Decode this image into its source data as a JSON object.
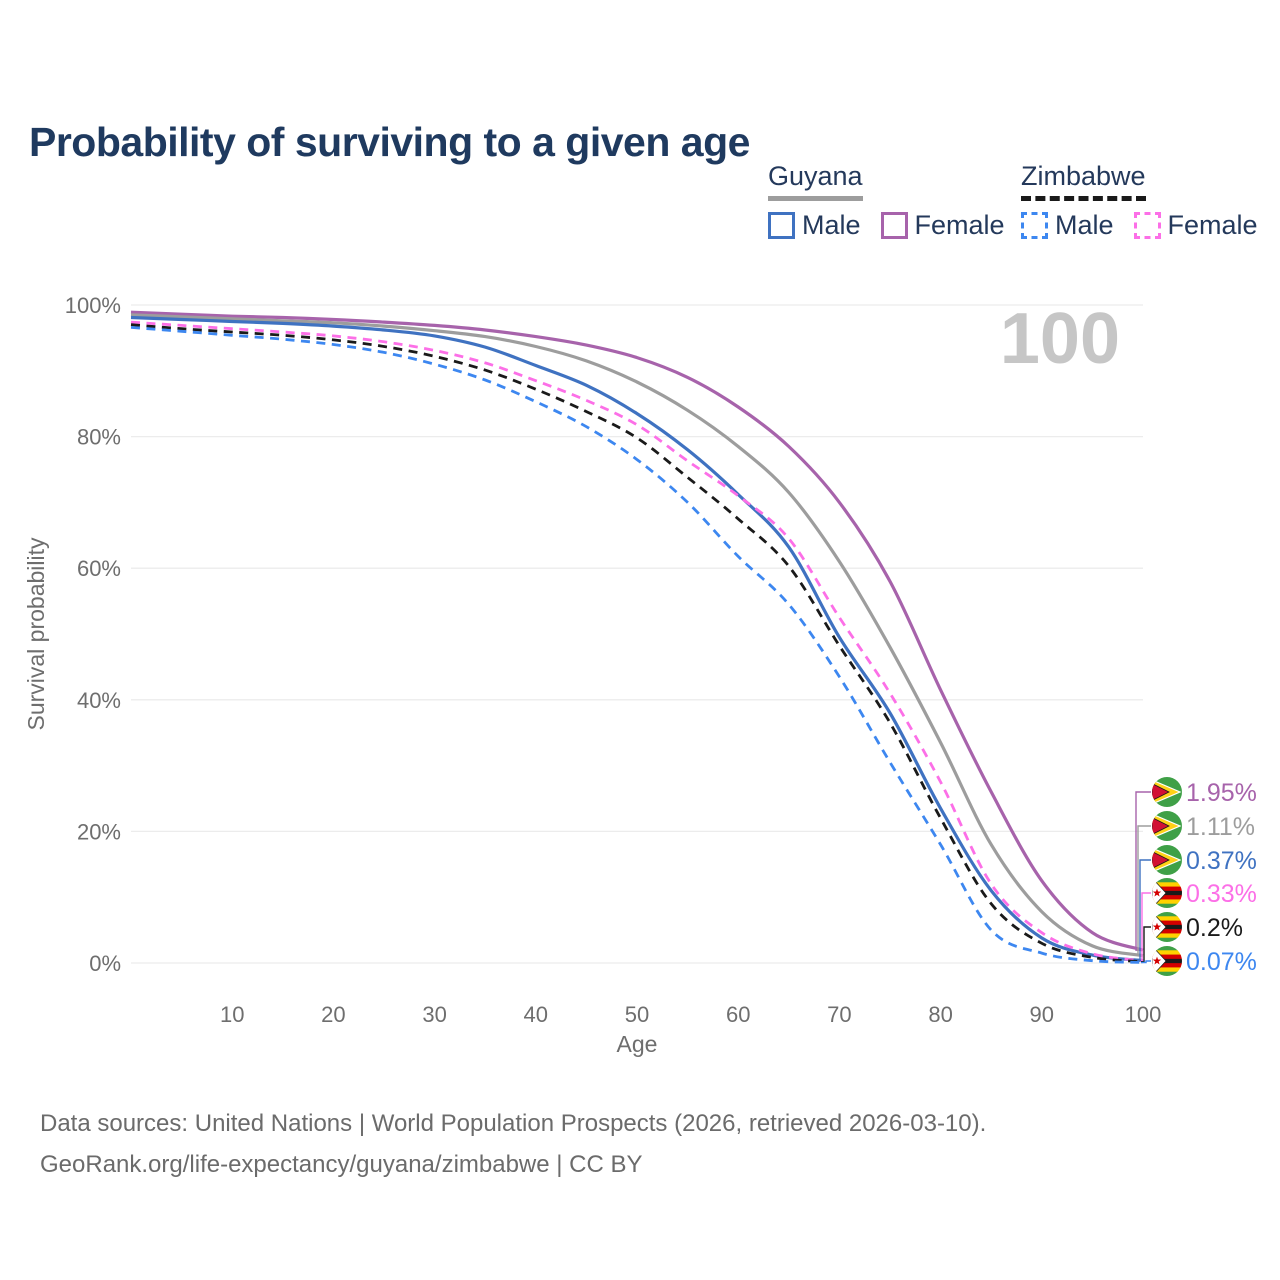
{
  "title": "Probability of surviving to a given age",
  "legend": {
    "groups": [
      {
        "name": "Guyana",
        "line_color": "#9d9d9d",
        "line_style": "solid",
        "items": [
          {
            "label": "Male",
            "color": "#3f72c1",
            "style": "solid"
          },
          {
            "label": "Female",
            "color": "#a763ab",
            "style": "solid"
          }
        ]
      },
      {
        "name": "Zimbabwe",
        "line_color": "#1a1a1a",
        "line_style": "dashed",
        "items": [
          {
            "label": "Male",
            "color": "#3d87f0",
            "style": "dashed"
          },
          {
            "label": "Female",
            "color": "#fc6fe7",
            "style": "dashed"
          }
        ]
      }
    ]
  },
  "chart_data": {
    "type": "line",
    "title": "Probability of surviving to a given age",
    "xlabel": "Age",
    "ylabel": "Survival probability",
    "xlim": [
      0,
      100
    ],
    "ylim": [
      0,
      100
    ],
    "grid": "horizontal",
    "legend_position": "top-right",
    "watermark": "100",
    "x_ticks": [
      10,
      20,
      30,
      40,
      50,
      60,
      70,
      80,
      90,
      100
    ],
    "y_tick_values": [
      0,
      20,
      40,
      60,
      80,
      100
    ],
    "y_tick_labels": [
      "0%",
      "20%",
      "40%",
      "60%",
      "80%",
      "100%"
    ],
    "ages": [
      0,
      5,
      10,
      15,
      20,
      25,
      30,
      35,
      40,
      45,
      50,
      55,
      60,
      65,
      70,
      75,
      80,
      85,
      90,
      95,
      100
    ],
    "series": [
      {
        "name": "Guyana Female",
        "country": "guyana",
        "sex": "female",
        "color": "#a763ab",
        "dash": false,
        "end_label": "1.95%",
        "values": [
          98.9,
          98.6,
          98.3,
          98.1,
          97.8,
          97.4,
          96.9,
          96.2,
          95.2,
          93.9,
          92.0,
          89.0,
          84.5,
          78.5,
          70.0,
          58.0,
          41.5,
          26.0,
          12.5,
          4.6,
          1.95
        ]
      },
      {
        "name": "Guyana",
        "country": "guyana",
        "sex": "both",
        "color": "#9d9d9d",
        "dash": false,
        "end_label": "1.11%",
        "values": [
          98.5,
          98.2,
          97.9,
          97.6,
          97.3,
          96.8,
          96.1,
          95.2,
          93.7,
          91.5,
          88.3,
          84.0,
          78.5,
          71.5,
          61.0,
          48.0,
          33.5,
          18.0,
          7.8,
          2.6,
          1.11
        ]
      },
      {
        "name": "Guyana Male",
        "country": "guyana",
        "sex": "male",
        "color": "#3f72c1",
        "dash": false,
        "end_label": "0.37%",
        "values": [
          98.1,
          97.8,
          97.5,
          97.2,
          96.8,
          96.2,
          95.3,
          93.6,
          90.8,
          87.8,
          83.5,
          78.0,
          71.2,
          63.2,
          49.5,
          38.0,
          23.5,
          11.0,
          3.8,
          1.2,
          0.37
        ]
      },
      {
        "name": "Zimbabwe Female",
        "country": "zimbabwe",
        "sex": "female",
        "color": "#fc6fe7",
        "dash": true,
        "end_label": "0.33%",
        "values": [
          97.4,
          96.9,
          96.4,
          95.9,
          95.3,
          94.4,
          93.1,
          91.2,
          88.5,
          85.5,
          81.8,
          76.3,
          71.0,
          64.5,
          52.5,
          41.0,
          27.5,
          12.0,
          4.6,
          1.4,
          0.33
        ]
      },
      {
        "name": "Zimbabwe",
        "country": "zimbabwe",
        "sex": "both",
        "color": "#1a1a1a",
        "dash": true,
        "end_label": "0.2%",
        "values": [
          97.0,
          96.4,
          95.9,
          95.4,
          94.7,
          93.7,
          92.2,
          90.1,
          87.2,
          83.8,
          79.8,
          73.8,
          67.5,
          60.3,
          48.2,
          36.5,
          22.0,
          9.0,
          3.0,
          0.85,
          0.2
        ]
      },
      {
        "name": "Zimbabwe Male",
        "country": "zimbabwe",
        "sex": "male",
        "color": "#3d87f0",
        "dash": true,
        "end_label": "0.07%",
        "values": [
          96.6,
          96.0,
          95.4,
          94.8,
          94.0,
          92.8,
          91.0,
          88.6,
          85.3,
          81.5,
          76.5,
          70.0,
          61.8,
          54.5,
          43.5,
          30.5,
          18.0,
          5.0,
          1.5,
          0.35,
          0.07
        ]
      }
    ]
  },
  "footer": {
    "line1": "Data sources: United Nations | World Population Prospects (2026, retrieved 2026-03-10).",
    "line2": "GeoRank.org/life-expectancy/guyana/zimbabwe | CC BY"
  }
}
